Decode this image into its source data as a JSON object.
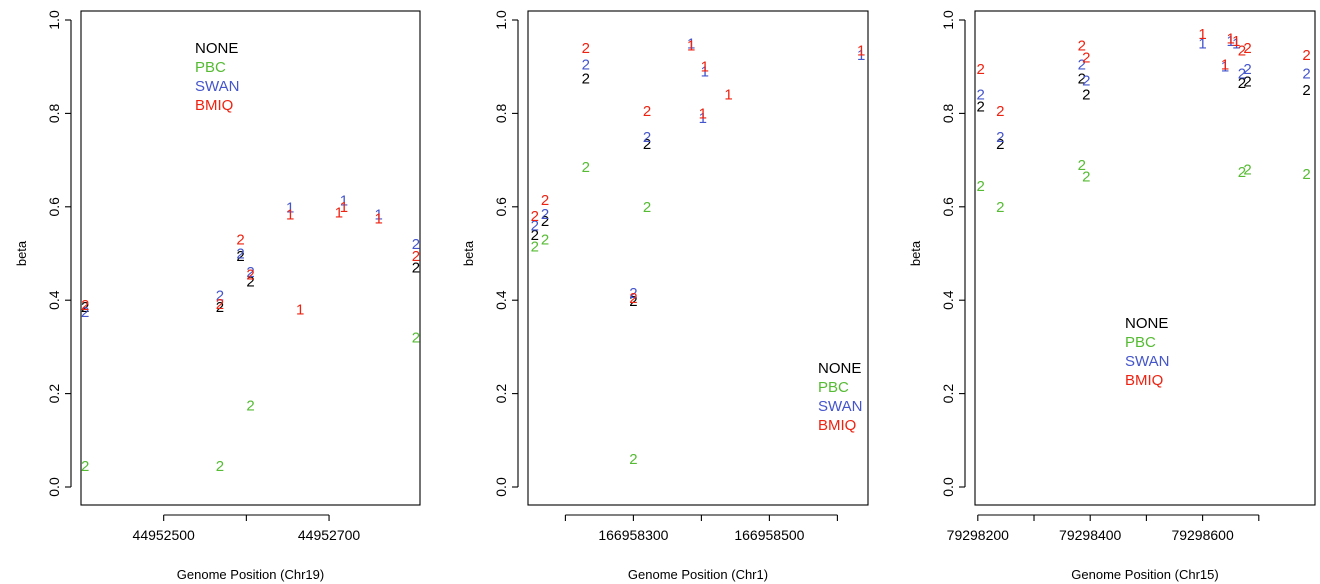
{
  "colors": {
    "NONE": "#000000",
    "PBC": "#55bb33",
    "SWAN": "#4455cc",
    "BMIQ": "#ee2211"
  },
  "chart_data": [
    {
      "type": "scatter",
      "xlabel": "Genome Position (Chr19)",
      "ylabel": "beta",
      "xlim": [
        44952400,
        44952810
      ],
      "ylim": [
        0,
        1.0
      ],
      "xticks": [
        44952500,
        44952700
      ],
      "xticks_unlabeled": [
        44952600
      ],
      "yticks": [
        "0.0",
        "0.2",
        "0.4",
        "0.6",
        "0.8",
        "1.0"
      ],
      "legend": {
        "position": "top-center",
        "entries": [
          "NONE",
          "PBC",
          "SWAN",
          "BMIQ"
        ]
      },
      "series": [
        {
          "name": "NONE",
          "points": [
            {
              "x": 44952405,
              "y": 0.385,
              "m": "2"
            },
            {
              "x": 44952568,
              "y": 0.385,
              "m": "2"
            },
            {
              "x": 44952593,
              "y": 0.495,
              "m": "2"
            },
            {
              "x": 44952605,
              "y": 0.44,
              "m": "2"
            },
            {
              "x": 44952805,
              "y": 0.47,
              "m": "2"
            }
          ]
        },
        {
          "name": "PBC",
          "points": [
            {
              "x": 44952405,
              "y": 0.045,
              "m": "2"
            },
            {
              "x": 44952568,
              "y": 0.045,
              "m": "2"
            },
            {
              "x": 44952605,
              "y": 0.175,
              "m": "2"
            },
            {
              "x": 44952805,
              "y": 0.32,
              "m": "2"
            }
          ]
        },
        {
          "name": "SWAN",
          "points": [
            {
              "x": 44952405,
              "y": 0.375,
              "m": "2"
            },
            {
              "x": 44952568,
              "y": 0.41,
              "m": "2"
            },
            {
              "x": 44952593,
              "y": 0.5,
              "m": "2"
            },
            {
              "x": 44952605,
              "y": 0.46,
              "m": "2"
            },
            {
              "x": 44952653,
              "y": 0.598,
              "m": "1"
            },
            {
              "x": 44952718,
              "y": 0.614,
              "m": "1"
            },
            {
              "x": 44952760,
              "y": 0.584,
              "m": "1"
            },
            {
              "x": 44952805,
              "y": 0.52,
              "m": "2"
            }
          ]
        },
        {
          "name": "BMIQ",
          "points": [
            {
              "x": 44952405,
              "y": 0.39,
              "m": "2"
            },
            {
              "x": 44952568,
              "y": 0.392,
              "m": "2"
            },
            {
              "x": 44952593,
              "y": 0.53,
              "m": "2"
            },
            {
              "x": 44952605,
              "y": 0.455,
              "m": "2"
            },
            {
              "x": 44952653,
              "y": 0.584,
              "m": "1"
            },
            {
              "x": 44952665,
              "y": 0.38,
              "m": "1"
            },
            {
              "x": 44952712,
              "y": 0.588,
              "m": "1"
            },
            {
              "x": 44952718,
              "y": 0.6,
              "m": "1"
            },
            {
              "x": 44952760,
              "y": 0.575,
              "m": "1"
            },
            {
              "x": 44952805,
              "y": 0.495,
              "m": "2"
            }
          ]
        }
      ]
    },
    {
      "type": "scatter",
      "xlabel": "Genome Position (Chr1)",
      "ylabel": "beta",
      "xlim": [
        166958145,
        166958645
      ],
      "ylim": [
        0,
        1.0
      ],
      "xticks": [
        166958300,
        166958500
      ],
      "xticks_unlabeled": [
        166958200,
        166958400,
        166958600
      ],
      "yticks": [
        "0.0",
        "0.2",
        "0.4",
        "0.6",
        "0.8",
        "1.0"
      ],
      "legend": {
        "position": "bottom-right",
        "entries": [
          "NONE",
          "PBC",
          "SWAN",
          "BMIQ"
        ]
      },
      "series": [
        {
          "name": "NONE",
          "points": [
            {
              "x": 166958155,
              "y": 0.54,
              "m": "2"
            },
            {
              "x": 166958170,
              "y": 0.57,
              "m": "2"
            },
            {
              "x": 166958230,
              "y": 0.875,
              "m": "2"
            },
            {
              "x": 166958300,
              "y": 0.398,
              "m": "2"
            },
            {
              "x": 166958320,
              "y": 0.735,
              "m": "2"
            }
          ]
        },
        {
          "name": "PBC",
          "points": [
            {
              "x": 166958155,
              "y": 0.515,
              "m": "2"
            },
            {
              "x": 166958170,
              "y": 0.53,
              "m": "2"
            },
            {
              "x": 166958230,
              "y": 0.685,
              "m": "2"
            },
            {
              "x": 166958300,
              "y": 0.06,
              "m": "2"
            },
            {
              "x": 166958320,
              "y": 0.6,
              "m": "2"
            }
          ]
        },
        {
          "name": "SWAN",
          "points": [
            {
              "x": 166958155,
              "y": 0.56,
              "m": "2"
            },
            {
              "x": 166958170,
              "y": 0.585,
              "m": "2"
            },
            {
              "x": 166958230,
              "y": 0.905,
              "m": "2"
            },
            {
              "x": 166958300,
              "y": 0.415,
              "m": "2"
            },
            {
              "x": 166958320,
              "y": 0.75,
              "m": "2"
            },
            {
              "x": 166958385,
              "y": 0.95,
              "m": "1"
            },
            {
              "x": 166958405,
              "y": 0.89,
              "m": "1"
            },
            {
              "x": 166958402,
              "y": 0.79,
              "m": "1"
            },
            {
              "x": 166958635,
              "y": 0.925,
              "m": "1"
            }
          ]
        },
        {
          "name": "BMIQ",
          "points": [
            {
              "x": 166958155,
              "y": 0.58,
              "m": "2"
            },
            {
              "x": 166958170,
              "y": 0.615,
              "m": "2"
            },
            {
              "x": 166958230,
              "y": 0.94,
              "m": "2"
            },
            {
              "x": 166958300,
              "y": 0.405,
              "m": "2"
            },
            {
              "x": 166958320,
              "y": 0.805,
              "m": "2"
            },
            {
              "x": 166958385,
              "y": 0.945,
              "m": "1"
            },
            {
              "x": 166958405,
              "y": 0.9,
              "m": "1"
            },
            {
              "x": 166958402,
              "y": 0.8,
              "m": "1"
            },
            {
              "x": 166958440,
              "y": 0.84,
              "m": "1"
            },
            {
              "x": 166958635,
              "y": 0.935,
              "m": "1"
            }
          ]
        }
      ]
    },
    {
      "type": "scatter",
      "xlabel": "Genome Position (Chr15)",
      "ylabel": "beta",
      "xlim": [
        79298195,
        79298800
      ],
      "ylim": [
        0,
        1.0
      ],
      "xticks": [
        79298200,
        79298400,
        79298600
      ],
      "xticks_unlabeled": [
        79298300,
        79298500,
        79298700
      ],
      "yticks": [
        "0.0",
        "0.2",
        "0.4",
        "0.6",
        "0.8",
        "1.0"
      ],
      "legend": {
        "position": "center",
        "entries": [
          "NONE",
          "PBC",
          "SWAN",
          "BMIQ"
        ]
      },
      "series": [
        {
          "name": "NONE",
          "points": [
            {
              "x": 79298205,
              "y": 0.815,
              "m": "2"
            },
            {
              "x": 79298240,
              "y": 0.735,
              "m": "2"
            },
            {
              "x": 79298385,
              "y": 0.875,
              "m": "2"
            },
            {
              "x": 79298393,
              "y": 0.84,
              "m": "2"
            },
            {
              "x": 79298670,
              "y": 0.865,
              "m": "2"
            },
            {
              "x": 79298680,
              "y": 0.868,
              "m": "2"
            },
            {
              "x": 79298785,
              "y": 0.85,
              "m": "2"
            }
          ]
        },
        {
          "name": "PBC",
          "points": [
            {
              "x": 79298205,
              "y": 0.645,
              "m": "2"
            },
            {
              "x": 79298240,
              "y": 0.6,
              "m": "2"
            },
            {
              "x": 79298385,
              "y": 0.69,
              "m": "2"
            },
            {
              "x": 79298393,
              "y": 0.665,
              "m": "2"
            },
            {
              "x": 79298670,
              "y": 0.675,
              "m": "2"
            },
            {
              "x": 79298680,
              "y": 0.68,
              "m": "2"
            },
            {
              "x": 79298785,
              "y": 0.67,
              "m": "2"
            }
          ]
        },
        {
          "name": "SWAN",
          "points": [
            {
              "x": 79298205,
              "y": 0.84,
              "m": "2"
            },
            {
              "x": 79298240,
              "y": 0.75,
              "m": "2"
            },
            {
              "x": 79298385,
              "y": 0.905,
              "m": "2"
            },
            {
              "x": 79298393,
              "y": 0.87,
              "m": "2"
            },
            {
              "x": 79298670,
              "y": 0.885,
              "m": "2"
            },
            {
              "x": 79298680,
              "y": 0.895,
              "m": "2"
            },
            {
              "x": 79298785,
              "y": 0.885,
              "m": "2"
            },
            {
              "x": 79298600,
              "y": 0.95,
              "m": "1"
            },
            {
              "x": 79298640,
              "y": 0.9,
              "m": "1"
            },
            {
              "x": 79298650,
              "y": 0.955,
              "m": "1"
            },
            {
              "x": 79298660,
              "y": 0.95,
              "m": "1"
            }
          ]
        },
        {
          "name": "BMIQ",
          "points": [
            {
              "x": 79298205,
              "y": 0.895,
              "m": "2"
            },
            {
              "x": 79298240,
              "y": 0.805,
              "m": "2"
            },
            {
              "x": 79298385,
              "y": 0.945,
              "m": "2"
            },
            {
              "x": 79298393,
              "y": 0.92,
              "m": "2"
            },
            {
              "x": 79298670,
              "y": 0.935,
              "m": "2"
            },
            {
              "x": 79298680,
              "y": 0.94,
              "m": "2"
            },
            {
              "x": 79298785,
              "y": 0.925,
              "m": "2"
            },
            {
              "x": 79298600,
              "y": 0.97,
              "m": "1"
            },
            {
              "x": 79298640,
              "y": 0.905,
              "m": "1"
            },
            {
              "x": 79298650,
              "y": 0.96,
              "m": "1"
            },
            {
              "x": 79298660,
              "y": 0.955,
              "m": "1"
            }
          ]
        }
      ]
    }
  ]
}
